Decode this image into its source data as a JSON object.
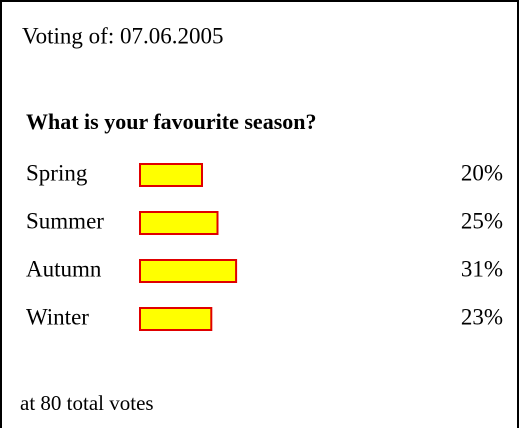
{
  "chart_data": {
    "type": "bar",
    "subtitle": "Voting of: 07.06.2005",
    "title": "What is your favourite season?",
    "categories": [
      "Spring",
      "Summer",
      "Autumn",
      "Winter"
    ],
    "values": [
      20,
      25,
      31,
      23
    ],
    "value_labels": [
      "20%",
      "25%",
      "31%",
      "23%"
    ],
    "color": "#ffff00",
    "edge_color": "#e00000",
    "annotation": "at 80 total votes"
  }
}
